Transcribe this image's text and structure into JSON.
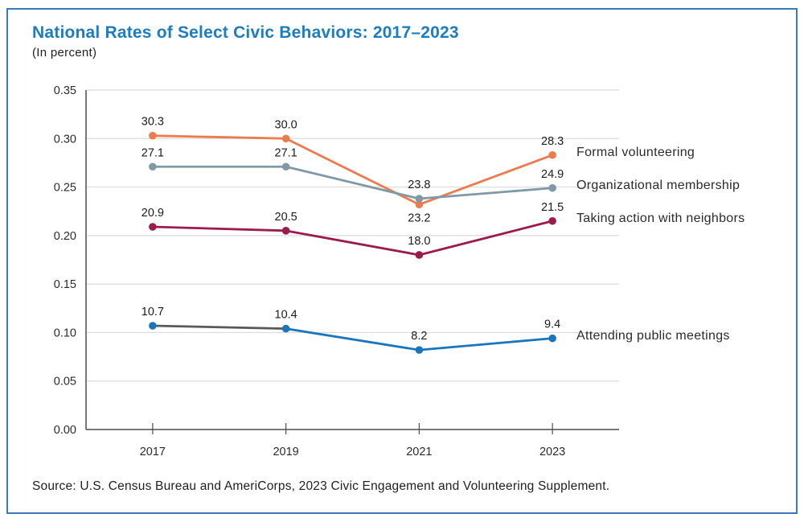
{
  "header": {
    "title": "National Rates of Select Civic Behaviors: 2017–2023",
    "subtitle": "(In percent)"
  },
  "source": {
    "text": "Source: U.S. Census Bureau and AmeriCorps, 2023 Civic Engagement and Volunteering Supplement."
  },
  "colors": {
    "title_accent": "#1b7dc2",
    "card_border": "#3c79b8",
    "grid_line": "#dbdbdb",
    "axis_line": "#4d4d4f",
    "data_label_text": "#1c1c1c",
    "axis_label_text": "#2b2b2b",
    "series_label_text": "#2b2b2b"
  },
  "chart_data": {
    "type": "line",
    "title": "National Rates of Select Civic Behaviors: 2017–2023",
    "subtitle": "(In percent)",
    "categories": [
      "2017",
      "2019",
      "2021",
      "2023"
    ],
    "y_axis": {
      "min": 0,
      "max": 0.35,
      "tick_step": 0.05,
      "tick_labels": [
        "0.00",
        "0.05",
        "0.10",
        "0.15",
        "0.20",
        "0.25",
        "0.30",
        "0.35"
      ],
      "grid": true
    },
    "xlabel": "",
    "ylabel": "",
    "legend_position": "right-of-last-point",
    "series": [
      {
        "name": "Formal volunteering",
        "color": "#ee7b4c",
        "values": [
          30.3,
          30.0,
          23.2,
          28.3
        ],
        "label_positions": [
          "above",
          "above",
          "below",
          "above"
        ]
      },
      {
        "name": "Organizational membership",
        "color": "#7f99a6",
        "values": [
          27.1,
          27.1,
          23.8,
          24.9
        ],
        "label_positions": [
          "above",
          "above",
          "above",
          "above"
        ]
      },
      {
        "name": "Taking action with neighbors",
        "color": "#9c1b4c",
        "values": [
          20.9,
          20.5,
          18.0,
          21.5
        ],
        "label_positions": [
          "above",
          "above",
          "above",
          "above"
        ]
      },
      {
        "name": "Attending public meetings",
        "color": "#1b75bc",
        "segment_colors": [
          "#58595b",
          "#1b75bc",
          "#1b75bc"
        ],
        "values": [
          10.7,
          10.4,
          8.2,
          9.4
        ],
        "label_positions": [
          "above",
          "above",
          "above",
          "above"
        ]
      }
    ]
  }
}
